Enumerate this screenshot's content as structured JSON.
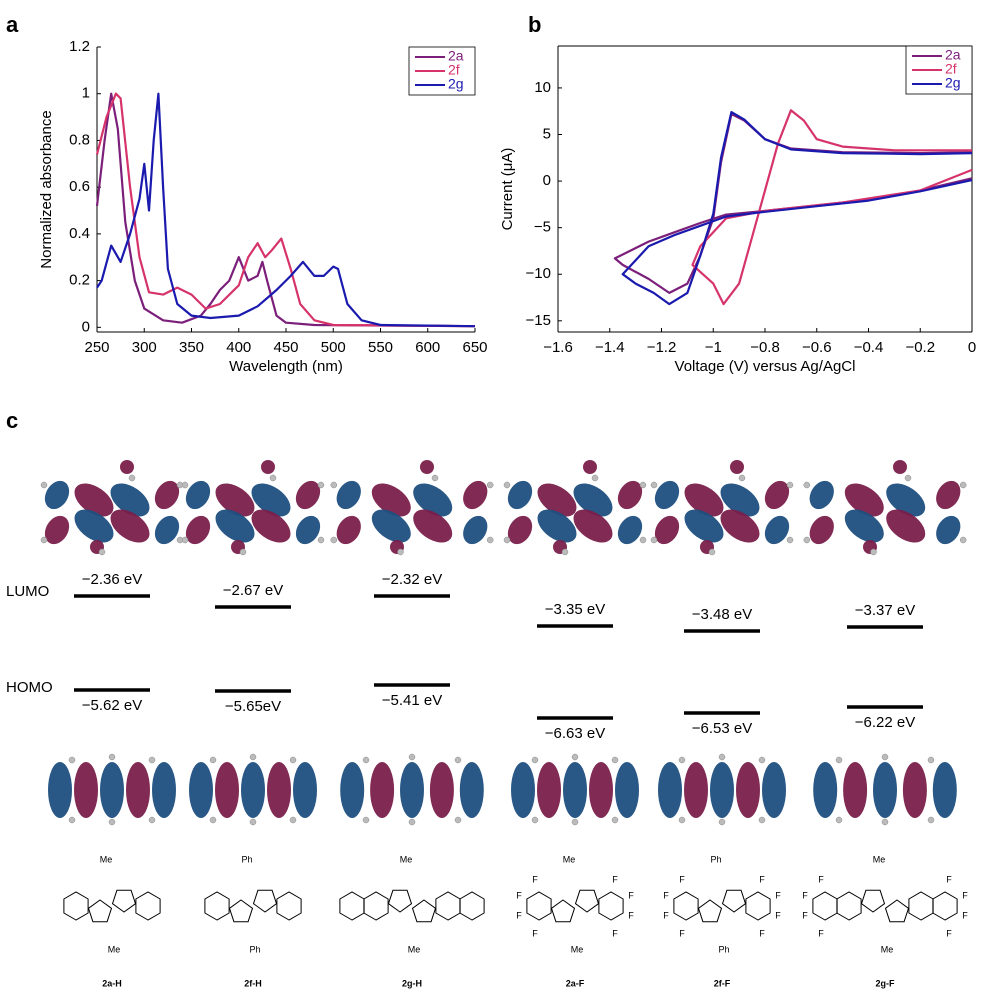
{
  "chart_data": [
    {
      "type": "line",
      "panel_label": "a",
      "xlabel": "Wavelength (nm)",
      "ylabel": "Normalized absorbance",
      "xlim": [
        250,
        650
      ],
      "xticks": [
        250,
        300,
        350,
        400,
        450,
        500,
        550,
        600,
        650
      ],
      "ylim": [
        -0.02,
        1.2
      ],
      "yticks": [
        0,
        0.2,
        0.4,
        0.6,
        0.8,
        1,
        1.2
      ],
      "legend": "upper right",
      "series": [
        {
          "name": "2a",
          "color": "#7b1f7a",
          "x": [
            250,
            258,
            265,
            272,
            280,
            290,
            300,
            320,
            340,
            360,
            370,
            380,
            390,
            400,
            410,
            420,
            425,
            430,
            440,
            450,
            480,
            650
          ],
          "values": [
            0.52,
            0.8,
            1.0,
            0.85,
            0.45,
            0.2,
            0.08,
            0.03,
            0.02,
            0.05,
            0.1,
            0.16,
            0.2,
            0.3,
            0.2,
            0.22,
            0.28,
            0.2,
            0.05,
            0.02,
            0.01,
            0.005
          ]
        },
        {
          "name": "2f",
          "color": "#d6336c",
          "x": [
            250,
            260,
            270,
            275,
            285,
            295,
            305,
            320,
            335,
            350,
            365,
            380,
            400,
            410,
            420,
            428,
            435,
            445,
            455,
            465,
            480,
            500,
            650
          ],
          "values": [
            0.74,
            0.9,
            1.0,
            0.98,
            0.6,
            0.3,
            0.15,
            0.14,
            0.17,
            0.14,
            0.08,
            0.1,
            0.18,
            0.3,
            0.36,
            0.3,
            0.33,
            0.38,
            0.25,
            0.1,
            0.03,
            0.01,
            0.005
          ]
        },
        {
          "name": "2g",
          "color": "#1a1aaf",
          "x": [
            250,
            255,
            265,
            275,
            285,
            295,
            300,
            305,
            310,
            315,
            320,
            325,
            335,
            350,
            370,
            400,
            420,
            440,
            455,
            468,
            480,
            490,
            500,
            505,
            515,
            530,
            550,
            650
          ],
          "values": [
            0.17,
            0.2,
            0.35,
            0.28,
            0.4,
            0.55,
            0.7,
            0.5,
            0.8,
            1.0,
            0.6,
            0.25,
            0.1,
            0.05,
            0.04,
            0.05,
            0.09,
            0.16,
            0.22,
            0.28,
            0.22,
            0.22,
            0.26,
            0.25,
            0.1,
            0.03,
            0.01,
            0.005
          ]
        }
      ]
    },
    {
      "type": "line",
      "panel_label": "b",
      "xlabel": "Voltage (V) versus Ag/AgCl",
      "ylabel": "Current (μA)",
      "xlim": [
        -1.6,
        0
      ],
      "xticks": [
        {
          "value": -1.6,
          "label": "−1.6"
        },
        {
          "value": -1.4,
          "label": "−1.4"
        },
        {
          "value": -1.2,
          "label": "−1.2"
        },
        {
          "value": -1,
          "label": "−1"
        },
        {
          "value": -0.8,
          "label": "−0.8"
        },
        {
          "value": -0.6,
          "label": "−0.6"
        },
        {
          "value": -0.4,
          "label": "−0.4"
        },
        {
          "value": -0.2,
          "label": "−0.2"
        },
        0
      ],
      "ylim": [
        -16.2,
        14.5
      ],
      "yticks": [
        {
          "value": -15,
          "label": "−15"
        },
        {
          "value": -10,
          "label": "−10"
        },
        {
          "value": -5,
          "label": "−5"
        },
        0,
        5,
        10
      ],
      "legend": "upper right",
      "series": [
        {
          "name": "2a",
          "color": "#7b1f7a",
          "x": [
            0,
            -0.2,
            -0.4,
            -0.6,
            -0.8,
            -0.95,
            -1.05,
            -1.15,
            -1.25,
            -1.38,
            -1.35,
            -1.25,
            -1.17,
            -1.1,
            -1.05,
            -1.0,
            -0.97,
            -0.93,
            -0.88,
            -0.8,
            -0.7,
            -0.5,
            -0.2,
            0
          ],
          "values": [
            0.3,
            -1,
            -2,
            -2.6,
            -3.2,
            -3.6,
            -4.5,
            -5.5,
            -6.5,
            -8.3,
            -9,
            -10.5,
            -12,
            -11,
            -8,
            -4,
            2,
            7.2,
            6.5,
            4.5,
            3.5,
            3.1,
            3.0,
            3.1
          ]
        },
        {
          "name": "2f",
          "color": "#d6336c",
          "x": [
            0,
            -0.2,
            -0.5,
            -0.8,
            -0.95,
            -1.05,
            -1.08,
            -1.0,
            -0.96,
            -0.9,
            -0.85,
            -0.8,
            -0.75,
            -0.7,
            -0.65,
            -0.6,
            -0.5,
            -0.3,
            0
          ],
          "values": [
            1.2,
            -1,
            -2.3,
            -3.2,
            -4,
            -7,
            -9,
            -11,
            -13.2,
            -11,
            -6,
            -1,
            4,
            7.6,
            6.5,
            4.5,
            3.7,
            3.3,
            3.3
          ]
        },
        {
          "name": "2g",
          "color": "#1a1aaf",
          "x": [
            0,
            -0.2,
            -0.4,
            -0.6,
            -0.8,
            -0.95,
            -1.05,
            -1.15,
            -1.25,
            -1.35,
            -1.3,
            -1.23,
            -1.17,
            -1.1,
            -1.05,
            -1.0,
            -0.97,
            -0.93,
            -0.88,
            -0.8,
            -0.7,
            -0.5,
            -0.2,
            0
          ],
          "values": [
            0.1,
            -1.1,
            -2.1,
            -2.7,
            -3.3,
            -3.8,
            -4.8,
            -5.8,
            -7,
            -10,
            -11,
            -12,
            -13.2,
            -12,
            -8,
            -3.5,
            2.5,
            7.4,
            6.6,
            4.5,
            3.4,
            3.0,
            2.9,
            3.0
          ]
        }
      ]
    }
  ],
  "panel_c": {
    "label": "c",
    "lumo": "LUMO",
    "homo": "HOMO",
    "fluorine": "F",
    "molecules": [
      {
        "name": "2a-H",
        "lumo_energy": "−2.36 eV",
        "homo_energy": "−5.62 eV",
        "substituent": "Me"
      },
      {
        "name": "2f-H",
        "lumo_energy": "−2.67 eV",
        "homo_energy": "−5.65eV",
        "substituent": "Ph"
      },
      {
        "name": "2g-H",
        "lumo_energy": "−2.32 eV",
        "homo_energy": "−5.41 eV",
        "substituent": "Me"
      },
      {
        "name": "2a-F",
        "lumo_energy": "−3.35 eV",
        "homo_energy": "−6.63 eV",
        "substituent": "Me"
      },
      {
        "name": "2f-F",
        "lumo_energy": "−3.48 eV",
        "homo_energy": "−6.53 eV",
        "substituent": "Ph"
      },
      {
        "name": "2g-F",
        "lumo_energy": "−3.37 eV",
        "homo_energy": "−6.22 eV",
        "substituent": "Me"
      }
    ]
  }
}
